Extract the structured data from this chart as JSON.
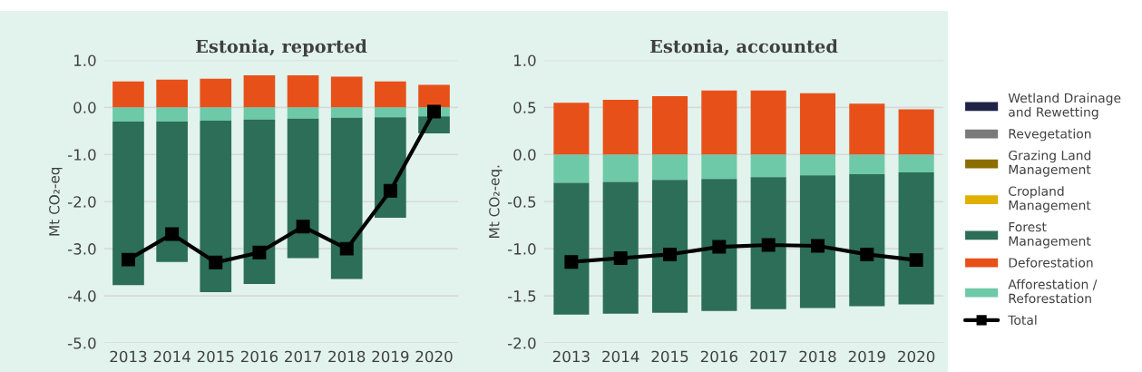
{
  "chart_data": [
    {
      "type": "bar",
      "title": "Estonia, reported",
      "ylabel": "Mt CO₂-eq",
      "stacked": true,
      "grid": "y",
      "categories": [
        "2013",
        "2014",
        "2015",
        "2016",
        "2017",
        "2018",
        "2019",
        "2020"
      ],
      "ylim": [
        -5.0,
        1.0
      ],
      "yticks": [
        {
          "value": 1.0,
          "label": "1.0"
        },
        {
          "value": 0.0,
          "label": "0.0"
        },
        {
          "value": -1.0,
          "label": "-1.0"
        },
        {
          "value": -2.0,
          "label": "-2.0"
        },
        {
          "value": -3.0,
          "label": "-3.0"
        },
        {
          "value": -4.0,
          "label": "-4.0"
        },
        {
          "value": -5.0,
          "label": "-5.0"
        }
      ],
      "series": [
        {
          "color": "#6dc9a8",
          "values": [
            -0.3,
            -0.3,
            -0.28,
            -0.26,
            -0.24,
            -0.22,
            -0.21,
            -0.19
          ]
        },
        {
          "color": "#e8501a",
          "values": [
            0.55,
            0.59,
            0.61,
            0.68,
            0.68,
            0.65,
            0.55,
            0.48
          ]
        },
        {
          "color": "#2c6e58",
          "values": [
            -3.47,
            -2.98,
            -3.64,
            -3.49,
            -2.96,
            -3.42,
            -2.13,
            -0.36
          ]
        },
        {
          "type": "line",
          "color": "#000000",
          "marker": "square",
          "line_style": "solid",
          "values": [
            -3.23,
            -2.69,
            -3.29,
            -3.08,
            -2.53,
            -3.0,
            -1.77,
            -0.09
          ]
        }
      ]
    },
    {
      "type": "bar",
      "title": "Estonia, accounted",
      "ylabel": "Mt CO₂-eq.",
      "stacked": true,
      "grid": "y",
      "legend": "right",
      "categories": [
        "2013",
        "2014",
        "2015",
        "2016",
        "2017",
        "2018",
        "2019",
        "2020"
      ],
      "ylim": [
        -2.0,
        1.0
      ],
      "yticks": [
        {
          "value": 1.0,
          "label": "1.0"
        },
        {
          "value": 0.5,
          "label": "0.5"
        },
        {
          "value": 0.0,
          "label": "0.0"
        },
        {
          "value": -0.5,
          "label": "-0.5"
        },
        {
          "value": -1.0,
          "label": "-1.0"
        },
        {
          "value": -1.5,
          "label": "-1.5"
        },
        {
          "value": -2.0,
          "label": "-2.0"
        }
      ],
      "series": [
        {
          "name": "Afforestation / Reforestation",
          "color": "#6dc9a8",
          "values": [
            -0.3,
            -0.29,
            -0.27,
            -0.26,
            -0.24,
            -0.22,
            -0.21,
            -0.19
          ]
        },
        {
          "name": "Deforestation",
          "color": "#e8501a",
          "values": [
            0.55,
            0.58,
            0.62,
            0.68,
            0.68,
            0.65,
            0.54,
            0.48
          ]
        },
        {
          "name": "Forest Management",
          "color": "#2c6e58",
          "values": [
            -1.4,
            -1.4,
            -1.41,
            -1.4,
            -1.4,
            -1.41,
            -1.4,
            -1.4
          ]
        },
        {
          "name": "Cropland Management",
          "color": "#e0b000",
          "values": [
            null,
            null,
            null,
            null,
            null,
            null,
            null,
            null
          ]
        },
        {
          "name": "Grazing Land Management",
          "color": "#8c6d00",
          "values": [
            null,
            null,
            null,
            null,
            null,
            null,
            null,
            null
          ]
        },
        {
          "name": "Revegetation",
          "color": "#7a7a7a",
          "values": [
            null,
            null,
            null,
            null,
            null,
            null,
            null,
            null
          ]
        },
        {
          "name": "Wetland Drainage and Rewetting",
          "color": "#1f2447",
          "values": [
            null,
            null,
            null,
            null,
            null,
            null,
            null,
            null
          ]
        },
        {
          "name": "Total",
          "type": "line",
          "color": "#000000",
          "marker": "square",
          "line_style": "solid",
          "values": [
            -1.14,
            -1.1,
            -1.06,
            -0.98,
            -0.96,
            -0.97,
            -1.06,
            -1.12
          ]
        }
      ]
    }
  ]
}
